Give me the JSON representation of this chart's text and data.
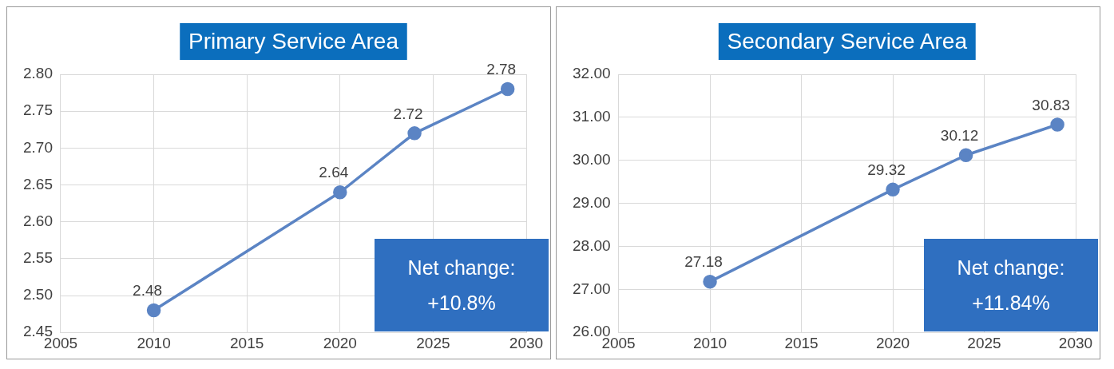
{
  "chart_data": [
    {
      "type": "line",
      "title": "Primary Service Area",
      "x": [
        2010,
        2020,
        2024,
        2029
      ],
      "series": [
        {
          "color": "#5b84c4",
          "values": [
            2.48,
            2.64,
            2.72,
            2.78
          ]
        }
      ],
      "xlim": [
        2005,
        2030
      ],
      "xticks": [
        2005,
        2010,
        2015,
        2020,
        2025,
        2030
      ],
      "ylim": [
        2.45,
        2.8
      ],
      "yticks": [
        {
          "value": 2.45,
          "label": "2.45"
        },
        {
          "value": 2.5,
          "label": "2.50"
        },
        {
          "value": 2.55,
          "label": "2.55"
        },
        {
          "value": 2.6,
          "label": "2.60"
        },
        {
          "value": 2.65,
          "label": "2.65"
        },
        {
          "value": 2.7,
          "label": "2.70"
        },
        {
          "value": 2.75,
          "label": "2.75"
        },
        {
          "value": 2.8,
          "label": "2.80"
        }
      ],
      "grid": true,
      "marker": "circle",
      "data_labels": true,
      "legend": false,
      "annotations": [
        "Net change:\n+10.8%"
      ]
    },
    {
      "type": "line",
      "title": "Secondary Service Area",
      "x": [
        2010,
        2020,
        2024,
        2029
      ],
      "series": [
        {
          "color": "#5b84c4",
          "values": [
            27.18,
            29.32,
            30.12,
            30.83
          ]
        }
      ],
      "xlim": [
        2005,
        2030
      ],
      "xticks": [
        2005,
        2010,
        2015,
        2020,
        2025,
        2030
      ],
      "ylim": [
        26,
        32
      ],
      "yticks": [
        {
          "value": 26,
          "label": "26.00"
        },
        {
          "value": 27,
          "label": "27.00"
        },
        {
          "value": 28,
          "label": "28.00"
        },
        {
          "value": 29,
          "label": "29.00"
        },
        {
          "value": 30,
          "label": "30.00"
        },
        {
          "value": 31,
          "label": "31.00"
        },
        {
          "value": 32,
          "label": "32.00"
        }
      ],
      "grid": true,
      "marker": "circle",
      "data_labels": true,
      "legend": false,
      "annotations": [
        "Net change:\n+11.84%"
      ]
    }
  ]
}
